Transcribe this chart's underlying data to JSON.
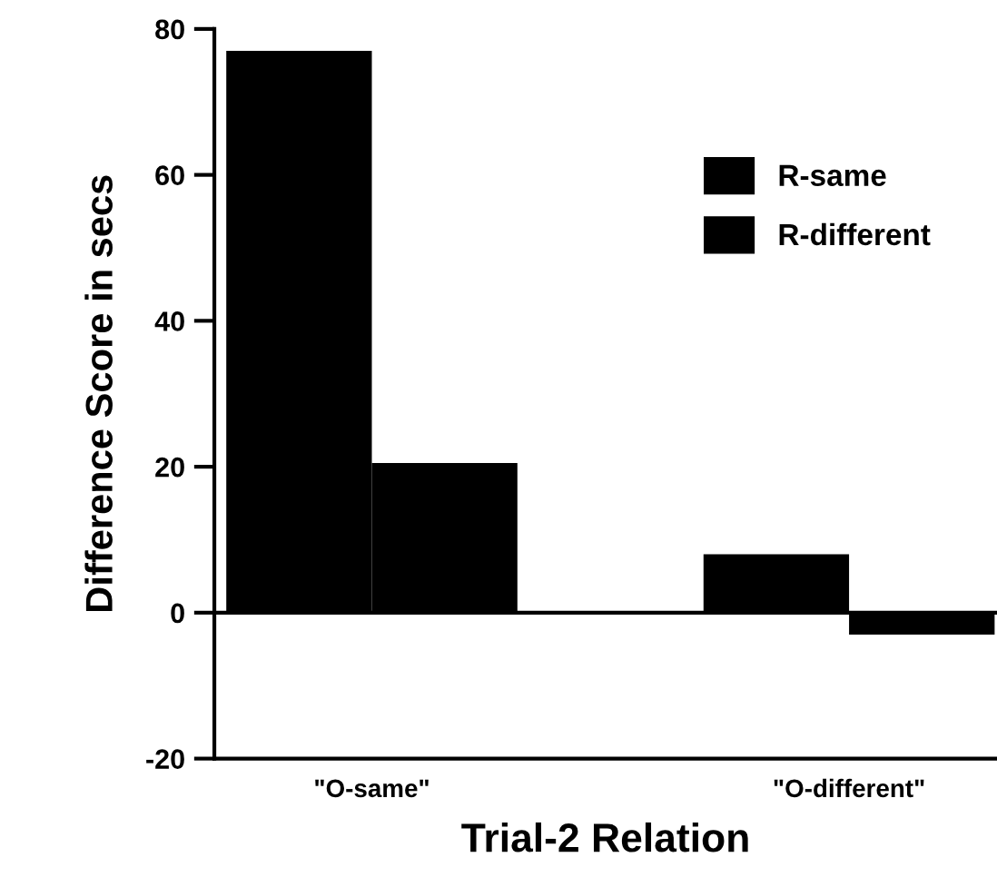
{
  "chart_data": {
    "type": "bar",
    "xlabel": "Trial-2 Relation",
    "ylabel": "Difference Score in secs",
    "categories": [
      "\"O-same\"",
      "\"O-different\""
    ],
    "series": [
      {
        "name": "R-same",
        "color": "#000000",
        "values": [
          77,
          8
        ]
      },
      {
        "name": "R-different",
        "color": "#000000",
        "values": [
          20.5,
          -3
        ]
      }
    ],
    "ylim": [
      -20,
      80
    ],
    "yticks": [
      -20,
      0,
      20,
      40,
      60,
      80
    ],
    "ref_lines": [
      {
        "axis": "y",
        "value": 0,
        "color": "#000000"
      }
    ],
    "grid": false,
    "legend": "top right"
  }
}
